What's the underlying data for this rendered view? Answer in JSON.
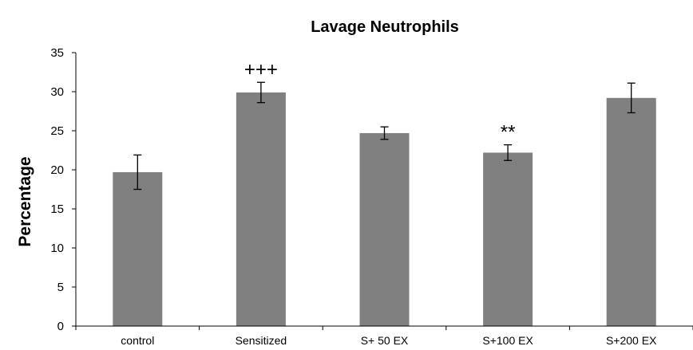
{
  "chart_data": {
    "type": "bar",
    "title": "Lavage Neutrophils",
    "xlabel": "",
    "ylabel": "Percentage",
    "ylim": [
      0,
      35
    ],
    "yticks": [
      0,
      5,
      10,
      15,
      20,
      25,
      30,
      35
    ],
    "categories": [
      "control",
      "Sensitized",
      "S+ 50 EX",
      "S+100 EX",
      "S+200 EX"
    ],
    "values": [
      19.7,
      29.9,
      24.7,
      22.2,
      29.2
    ],
    "errors": [
      2.2,
      1.3,
      0.8,
      1.0,
      1.9
    ],
    "annotations": [
      "",
      "+++",
      "",
      "**",
      ""
    ],
    "bar_color": "#808080",
    "grid": false,
    "legend": "none"
  }
}
